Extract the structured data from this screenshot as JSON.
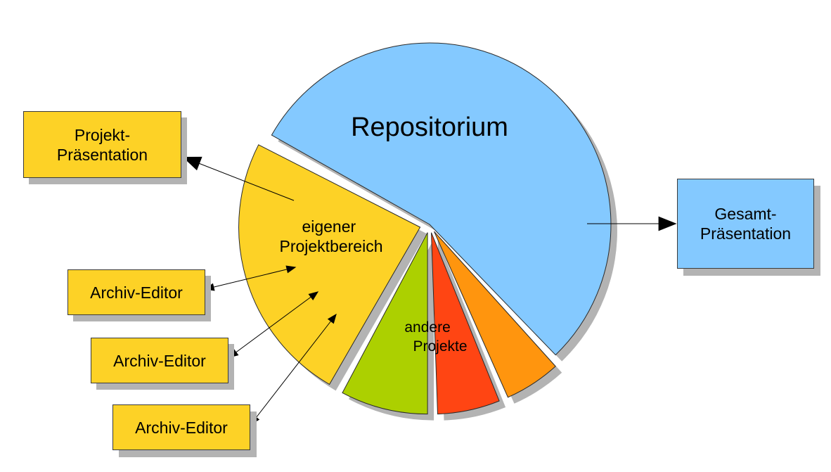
{
  "diagram": {
    "repository_label": "Repositorium",
    "own_area_label": [
      "eigener",
      "Projektbereich"
    ],
    "other_projects_label": [
      "andere",
      "Projekte"
    ],
    "boxes": {
      "projekt_praesentation": [
        "Projekt-",
        "Präsentation"
      ],
      "gesamt_praesentation": [
        "Gesamt-",
        "Präsentation"
      ],
      "archiv_editor_1": "Archiv-Editor",
      "archiv_editor_2": "Archiv-Editor",
      "archiv_editor_3": "Archiv-Editor"
    },
    "colors": {
      "repository": "#84c9ff",
      "own_area": "#fdd226",
      "green_slice": "#acd000",
      "red_slice": "#ff4513",
      "orange_slice": "#ff950e",
      "shadow": "#b3b3b3"
    }
  }
}
